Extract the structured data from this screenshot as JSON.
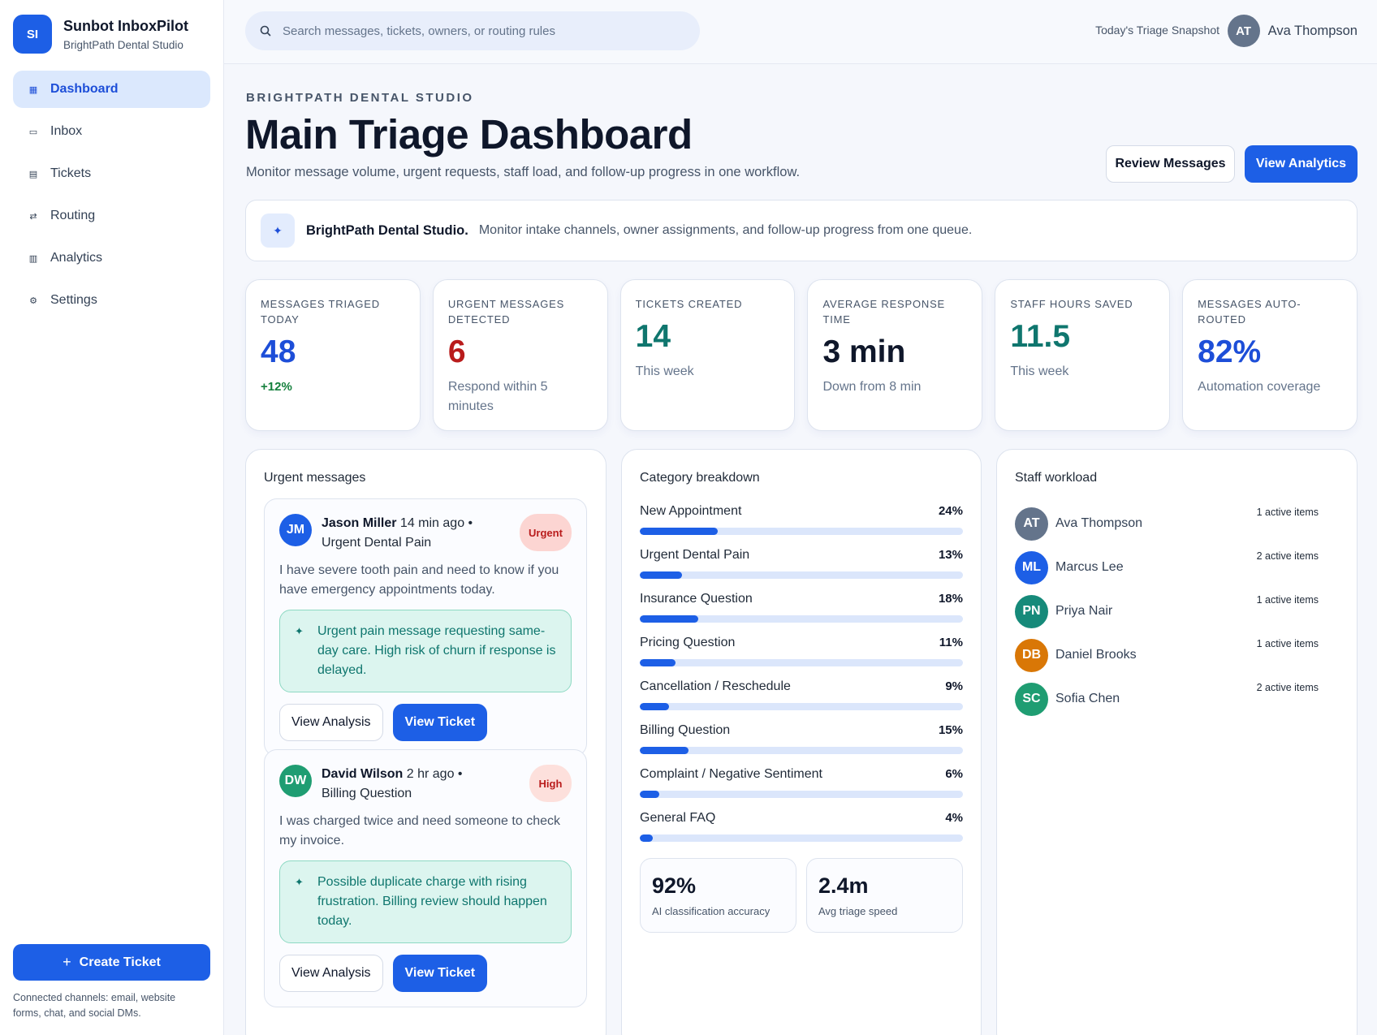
{
  "brand": {
    "logo": "SI",
    "name": "Sunbot InboxPilot",
    "org": "BrightPath Dental Studio"
  },
  "nav": [
    {
      "label": "Dashboard",
      "icon": "grid-icon",
      "glyph": "▦",
      "active": true
    },
    {
      "label": "Inbox",
      "icon": "inbox-icon",
      "glyph": "▭",
      "active": false
    },
    {
      "label": "Tickets",
      "icon": "ticket-icon",
      "glyph": "▤",
      "active": false
    },
    {
      "label": "Routing",
      "icon": "routing-icon",
      "glyph": "⇄",
      "active": false
    },
    {
      "label": "Analytics",
      "icon": "bar-chart-icon",
      "glyph": "▥",
      "active": false
    },
    {
      "label": "Settings",
      "icon": "gear-icon",
      "glyph": "⚙",
      "active": false
    }
  ],
  "sidebar_footer": {
    "create_label": "Create Ticket",
    "channels": "Connected channels: email, website forms, chat, and social DMs."
  },
  "topbar": {
    "search_placeholder": "Search messages, tickets, owners, or routing rules",
    "snapshot": "Today's Triage Snapshot",
    "user_initials": "AT",
    "user_name": "Ava Thompson"
  },
  "header": {
    "eyebrow": "BRIGHTPATH DENTAL STUDIO",
    "title": "Main Triage Dashboard",
    "subtitle": "Monitor message volume, urgent requests, staff load, and follow-up progress in one workflow.",
    "review_label": "Review Messages",
    "analytics_label": "View Analytics"
  },
  "banner": {
    "strong": "BrightPath Dental Studio.",
    "text": "Monitor intake channels, owner assignments, and follow-up progress from one queue."
  },
  "stats": [
    {
      "label": "Messages Triaged Today",
      "value": "48",
      "note": "+12%",
      "color": "#1d4ed8",
      "note_style": "green"
    },
    {
      "label": "Urgent Messages Detected",
      "value": "6",
      "note": "Respond within 5 minutes",
      "color": "#b91c1c",
      "note_style": ""
    },
    {
      "label": "Tickets Created",
      "value": "14",
      "note": "This week",
      "color": "#0f766e",
      "note_style": ""
    },
    {
      "label": "Average Response Time",
      "value": "3 min",
      "note": "Down from 8 min",
      "color": "#0f172a",
      "note_style": ""
    },
    {
      "label": "Staff Hours Saved",
      "value": "11.5",
      "note": "This week",
      "color": "#0f766e",
      "note_style": ""
    },
    {
      "label": "Messages Auto-Routed",
      "value": "82%",
      "note": "Automation coverage",
      "color": "#1d4ed8",
      "note_style": ""
    }
  ],
  "urgent": {
    "title": "Urgent messages",
    "messages": [
      {
        "initials": "JM",
        "avatar_color": "#1d5fe6",
        "name": "Jason Miller",
        "meta": " 14 min ago • Urgent Dental Pain",
        "badge": "Urgent",
        "badge_style": "urgent",
        "body": "I have severe tooth pain and need to know if you have emergency appointments today.",
        "insight": "Urgent pain message requesting same-day care. High risk of churn if response is delayed.",
        "analysis_label": "View Analysis",
        "ticket_label": "View Ticket"
      },
      {
        "initials": "DW",
        "avatar_color": "#1f9d72",
        "name": "David Wilson",
        "meta": " 2 hr ago • Billing Question",
        "badge": "High",
        "badge_style": "high",
        "body": "I was charged twice and need someone to check my invoice.",
        "insight": "Possible duplicate charge with rising frustration. Billing review should happen today.",
        "analysis_label": "View Analysis",
        "ticket_label": "View Ticket"
      }
    ]
  },
  "categories": {
    "title": "Category breakdown",
    "items": [
      {
        "label": "New Appointment",
        "pct": "24%",
        "value": 24
      },
      {
        "label": "Urgent Dental Pain",
        "pct": "13%",
        "value": 13
      },
      {
        "label": "Insurance Question",
        "pct": "18%",
        "value": 18
      },
      {
        "label": "Pricing Question",
        "pct": "11%",
        "value": 11
      },
      {
        "label": "Cancellation / Reschedule",
        "pct": "9%",
        "value": 9
      },
      {
        "label": "Billing Question",
        "pct": "15%",
        "value": 15
      },
      {
        "label": "Complaint / Negative Sentiment",
        "pct": "6%",
        "value": 6
      },
      {
        "label": "General FAQ",
        "pct": "4%",
        "value": 4
      }
    ],
    "accuracy_value": "92%",
    "accuracy_label": "AI classification accuracy",
    "speed_value": "2.4m",
    "speed_label": "Avg triage speed"
  },
  "staff": {
    "title": "Staff workload",
    "members": [
      {
        "initials": "AT",
        "name": "Ava Thompson",
        "count": "1 active items",
        "color": "#64748b"
      },
      {
        "initials": "ML",
        "name": "Marcus Lee",
        "count": "2 active items",
        "color": "#1d5fe6"
      },
      {
        "initials": "PN",
        "name": "Priya Nair",
        "count": "1 active items",
        "color": "#168a7a"
      },
      {
        "initials": "DB",
        "name": "Daniel Brooks",
        "count": "1 active items",
        "color": "#d97706"
      },
      {
        "initials": "SC",
        "name": "Sofia Chen",
        "count": "2 active items",
        "color": "#1f9d72"
      }
    ]
  }
}
